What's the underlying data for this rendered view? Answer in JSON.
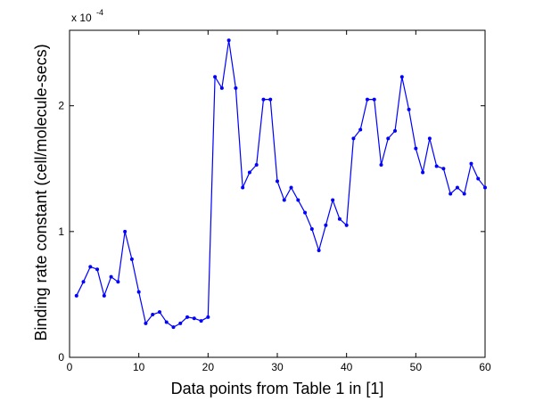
{
  "chart_data": {
    "type": "line",
    "xlabel": "Data points from Table 1 in [1]",
    "ylabel": "Binding rate constant (cell/molecule-secs)",
    "scale_note": {
      "base": "x 10",
      "exponent": "-4"
    },
    "xlim": [
      0,
      60
    ],
    "ylim": [
      0,
      2.6
    ],
    "x_ticks": [
      0,
      10,
      20,
      30,
      40,
      50,
      60
    ],
    "x_tick_labels": [
      "0",
      "10",
      "20",
      "30",
      "40",
      "50",
      "60"
    ],
    "y_ticks": [
      0,
      1,
      2
    ],
    "y_tick_labels": [
      "0",
      "1",
      "2"
    ],
    "grid": false,
    "series": [
      {
        "color": "#0000ff",
        "marker": "dot",
        "x": [
          1,
          2,
          3,
          4,
          5,
          6,
          7,
          8,
          9,
          10,
          11,
          12,
          13,
          14,
          15,
          16,
          17,
          18,
          19,
          20,
          21,
          22,
          23,
          24,
          25,
          26,
          27,
          28,
          29,
          30,
          31,
          32,
          33,
          34,
          35,
          36,
          37,
          38,
          39,
          40,
          41,
          42,
          43,
          44,
          45,
          46,
          47,
          48,
          49,
          50,
          51,
          52,
          53,
          54,
          55,
          56,
          57,
          58,
          59,
          60
        ],
        "y": [
          0.49,
          0.6,
          0.72,
          0.7,
          0.49,
          0.64,
          0.6,
          1.0,
          0.78,
          0.52,
          0.27,
          0.34,
          0.36,
          0.28,
          0.24,
          0.27,
          0.32,
          0.31,
          0.29,
          0.32,
          2.23,
          2.14,
          2.52,
          2.14,
          1.35,
          1.47,
          1.53,
          2.05,
          2.05,
          1.4,
          1.25,
          1.35,
          1.25,
          1.15,
          1.02,
          0.85,
          1.05,
          1.25,
          1.1,
          1.05,
          1.74,
          1.81,
          2.05,
          2.05,
          1.53,
          1.74,
          1.8,
          2.23,
          1.97,
          1.66,
          1.47,
          1.74,
          1.52,
          1.5,
          1.3,
          1.35,
          1.3,
          1.54,
          1.42,
          1.35
        ]
      }
    ]
  }
}
